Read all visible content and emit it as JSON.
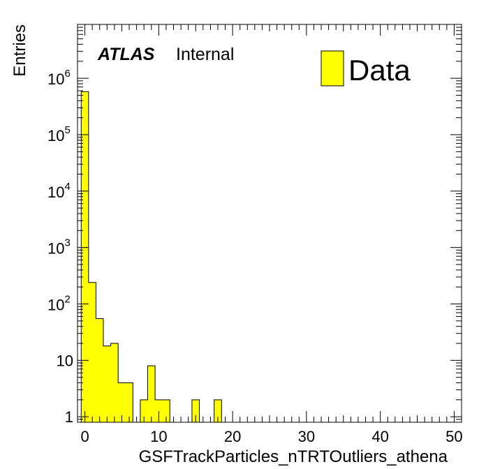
{
  "chart_data": {
    "type": "bar",
    "title": "",
    "xlabel": "GSFTrackParticles_nTRTOutliers_athena",
    "ylabel": "Entries",
    "xlim": [
      -1,
      51
    ],
    "ylim": [
      0.8,
      9000000
    ],
    "yscale": "log",
    "grid": false,
    "bin_width": 1,
    "fill_color": "#ffff00",
    "edge_color": "#000000",
    "x_ticks": [
      "0",
      "10",
      "20",
      "30",
      "40",
      "50"
    ],
    "y_ticks": [
      {
        "base": "1",
        "exp": ""
      },
      {
        "base": "10",
        "exp": ""
      },
      {
        "base": "10",
        "exp": "2"
      },
      {
        "base": "10",
        "exp": "3"
      },
      {
        "base": "10",
        "exp": "4"
      },
      {
        "base": "10",
        "exp": "5"
      },
      {
        "base": "10",
        "exp": "6"
      }
    ],
    "series": [
      {
        "name": "Data",
        "bins": [
          {
            "x": 0,
            "y": 580000
          },
          {
            "x": 1,
            "y": 240
          },
          {
            "x": 2,
            "y": 55
          },
          {
            "x": 3,
            "y": 18
          },
          {
            "x": 4,
            "y": 20
          },
          {
            "x": 5,
            "y": 4
          },
          {
            "x": 6,
            "y": 4
          },
          {
            "x": 8,
            "y": 2
          },
          {
            "x": 9,
            "y": 8
          },
          {
            "x": 10,
            "y": 2
          },
          {
            "x": 11,
            "y": 2
          },
          {
            "x": 15,
            "y": 2
          },
          {
            "x": 18,
            "y": 2
          }
        ]
      }
    ],
    "annotations": {
      "atlas": "ATLAS",
      "label": "Internal"
    },
    "legend_position": "top-right"
  }
}
